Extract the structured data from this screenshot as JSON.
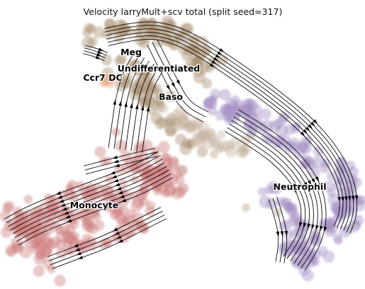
{
  "chart_data": {
    "type": "scatter",
    "title": "Velocity larryMult+scv total (split seed=317)",
    "xlabel": "",
    "ylabel": "",
    "axes_visible": false,
    "grid": false,
    "legend": "on data",
    "clusters": [
      {
        "name": "Meg",
        "color": "#a88d6e"
      },
      {
        "name": "Undifferentiated",
        "color": "#a88d6e"
      },
      {
        "name": "Ccr7 DC",
        "color": "#e8b091"
      },
      {
        "name": "Baso",
        "color": "#c9b6a3"
      },
      {
        "name": "Monocyte",
        "color": "#cc7b7b"
      },
      {
        "name": "Neutrophil",
        "color": "#a48fc4"
      }
    ],
    "overlay": "velocity stream lines with arrowheads"
  }
}
